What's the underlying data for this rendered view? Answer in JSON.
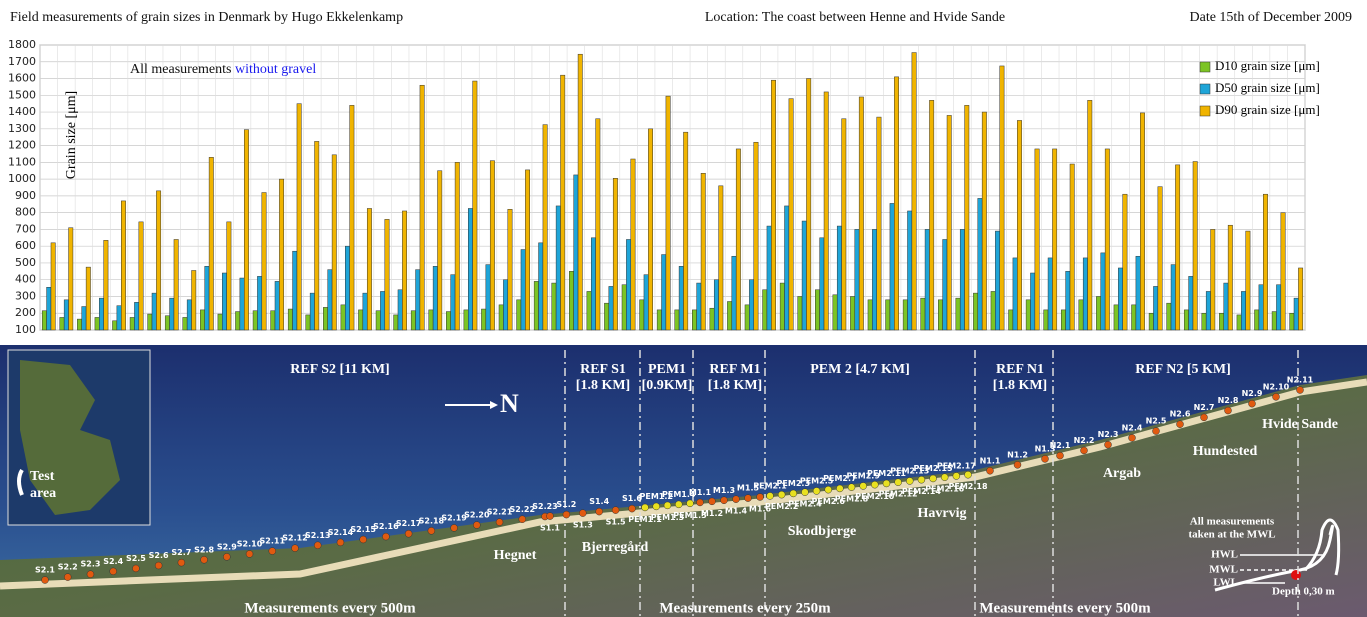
{
  "header": {
    "title": "Field measurements of grain sizes in Denmark by  Hugo Ekkelenkamp",
    "location": "Location: The coast between Henne and Hvide Sande",
    "date": "Date 15th of December 2009"
  },
  "chart_data": {
    "type": "bar",
    "y_label": "Grain size  [μm]",
    "annotation": {
      "text": "All measurements",
      "highlight": "without gravel",
      "highlight_color": "#1a1aee"
    },
    "categories": [
      null,
      null,
      null,
      null,
      null,
      null,
      null,
      null,
      null,
      null,
      null,
      null,
      null,
      null,
      null,
      null,
      null,
      null,
      null,
      null,
      null,
      null,
      null,
      null,
      null,
      null,
      null,
      null,
      null,
      null,
      null,
      null,
      null,
      null,
      null,
      null,
      null,
      null,
      null,
      null,
      null,
      null,
      null,
      null,
      null,
      null,
      null,
      null,
      null,
      null,
      null,
      null,
      null,
      null,
      null,
      null,
      null,
      null,
      null,
      null,
      null,
      null,
      null,
      null,
      null,
      null,
      null,
      null,
      null,
      null,
      null,
      null
    ],
    "series": [
      {
        "name": "D10 grain size [μm]",
        "color": "#7cc424",
        "values": [
          215,
          175,
          165,
          175,
          155,
          175,
          195,
          185,
          175,
          220,
          195,
          210,
          215,
          215,
          225,
          190,
          235,
          250,
          220,
          215,
          190,
          215,
          220,
          210,
          220,
          225,
          250,
          280,
          390,
          380,
          450,
          330,
          260,
          370,
          280,
          220,
          220,
          220,
          230,
          270,
          250,
          340,
          380,
          300,
          340,
          310,
          300,
          280,
          280,
          280,
          290,
          280,
          290,
          320,
          330,
          220,
          280,
          220,
          220,
          280,
          300,
          250,
          250,
          200,
          260,
          220,
          200,
          200,
          190,
          220,
          210,
          200
        ]
      },
      {
        "name": "D50 grain size [μm]",
        "color": "#1ea5d8",
        "values": [
          355,
          280,
          240,
          290,
          245,
          265,
          320,
          290,
          280,
          480,
          440,
          410,
          420,
          390,
          570,
          320,
          460,
          600,
          320,
          330,
          340,
          460,
          480,
          430,
          825,
          490,
          400,
          580,
          620,
          840,
          1025,
          650,
          360,
          640,
          430,
          550,
          480,
          380,
          400,
          540,
          400,
          720,
          840,
          750,
          650,
          720,
          700,
          700,
          855,
          810,
          700,
          640,
          700,
          885,
          690,
          530,
          440,
          530,
          450,
          530,
          560,
          470,
          540,
          360,
          490,
          420,
          330,
          380,
          330,
          370,
          370,
          290
        ]
      },
      {
        "name": "D90 grain size [μm]",
        "color": "#f0b400",
        "values": [
          620,
          710,
          475,
          635,
          870,
          745,
          930,
          640,
          455,
          1130,
          745,
          1295,
          920,
          1000,
          1450,
          1225,
          1145,
          1440,
          825,
          760,
          810,
          1560,
          1050,
          1100,
          1585,
          1110,
          820,
          1055,
          1325,
          1620,
          1745,
          1360,
          1005,
          1120,
          1300,
          1495,
          1280,
          1035,
          960,
          1180,
          1220,
          1590,
          1480,
          1600,
          1520,
          1360,
          1490,
          1370,
          1610,
          1755,
          1470,
          1380,
          1440,
          1400,
          1675,
          1350,
          1180,
          1180,
          1090,
          1470,
          1180,
          910,
          1395,
          955,
          1085,
          1105,
          700,
          725,
          690,
          910,
          800,
          470
        ]
      }
    ],
    "ylim": [
      100,
      1800
    ],
    "yticks": [
      100,
      200,
      300,
      400,
      500,
      600,
      700,
      800,
      900,
      1000,
      1100,
      1200,
      1300,
      1400,
      1500,
      1600,
      1700,
      1800
    ],
    "grid": true,
    "legend": "top-right"
  },
  "map": {
    "sections": [
      {
        "lines": [
          "REF S2  [11 KM]"
        ]
      },
      {
        "lines": [
          "REF S1",
          "[1.8 KM]"
        ]
      },
      {
        "lines": [
          "PEM1",
          "[0.9KM]"
        ]
      },
      {
        "lines": [
          "REF M1",
          "[1.8 KM]"
        ]
      },
      {
        "lines": [
          "PEM 2  [4.7 KM]"
        ]
      },
      {
        "lines": [
          "REF N1",
          "[1.8 KM]"
        ]
      },
      {
        "lines": [
          "REF N2  [5 KM]"
        ]
      }
    ],
    "north": "N",
    "stations": [
      "S2.1",
      "S2.2",
      "S2.3",
      "S2.4",
      "S2.5",
      "S2.6",
      "S2.7",
      "S2.8",
      "S2.9",
      "S2.10",
      "S2.11",
      "S2.12",
      "S2.13",
      "S2.14",
      "S2.15",
      "S2.16",
      "S2.17",
      "S2.18",
      "S2.19",
      "S2.20",
      "S2.21",
      "S2.22",
      "S2.23",
      "S1.1",
      "S1.2",
      "S1.3",
      "S1.4",
      "S1.5",
      "S1.6",
      "PEM1.1",
      "PEM1.2",
      "PEM1.3",
      "PEM1.4",
      "PEM1.5",
      "M1.1",
      "M1.2",
      "M1.3",
      "M1.4",
      "M1.5",
      "M1.6",
      "PEM2.1",
      "PEM2.2",
      "PEM2.3",
      "PEM2.4",
      "PEM2.5",
      "PEM2.6",
      "PEM2.7",
      "PEM2.8",
      "PEM2.9",
      "PEM2.10",
      "PEM2.11",
      "PEM2.12",
      "PEM2.13",
      "PEM2.14",
      "PEM2.15",
      "PEM2.16",
      "PEM2.17",
      "PEM2.18",
      "N1.1",
      "N1.2",
      "N1.3",
      "N2.1",
      "N2.2",
      "N2.3",
      "N2.4",
      "N2.5",
      "N2.6",
      "N2.7",
      "N2.8",
      "N2.9",
      "N2.10",
      "N2.11"
    ],
    "places": [
      "Hegnet",
      "Bjerregård",
      "Skodbjerge",
      "Havrvig",
      "Argab",
      "Hundested",
      "Hvide Sande"
    ],
    "spacing": [
      "Measurements  every 500m",
      "Measurements  every 250m",
      "Measurements  every 500m"
    ],
    "inset": {
      "lines": [
        "Test",
        "area"
      ]
    },
    "legend": {
      "title": [
        "All measurements",
        "taken at the MWL"
      ],
      "levels": [
        "HWL",
        "MWL",
        "LWL"
      ],
      "depth": "Depth 0,30 m"
    }
  }
}
